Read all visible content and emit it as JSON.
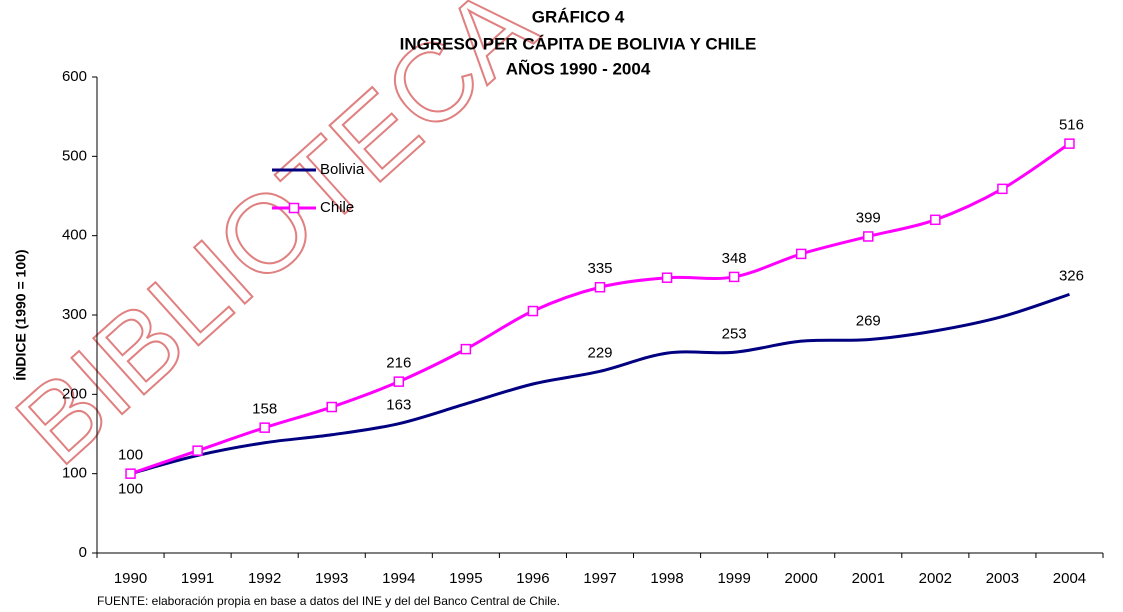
{
  "chart_data": {
    "type": "line",
    "watermark": "BIBLIOTECA",
    "title": [
      "GRÁFICO 4",
      "INGRESO PER CÁPITA DE BOLIVIA Y CHILE",
      "AÑOS 1990 - 2004"
    ],
    "ylabel": "ÍNDICE (1990 = 100)",
    "source": "FUENTE: elaboración propia en base a datos del INE y del del Banco Central de Chile.",
    "categories": [
      "1990",
      "1991",
      "1992",
      "1993",
      "1994",
      "1995",
      "1996",
      "1997",
      "1998",
      "1999",
      "2000",
      "2001",
      "2002",
      "2003",
      "2004"
    ],
    "series": [
      {
        "name": "Bolivia",
        "color": "#000080",
        "marker": false,
        "values": [
          100,
          123,
          139,
          149,
          163,
          188,
          213,
          229,
          252,
          253,
          267,
          269,
          280,
          298,
          326
        ],
        "value_labels": [
          "100",
          null,
          null,
          null,
          "163",
          null,
          null,
          "229",
          null,
          "253",
          null,
          "269",
          null,
          null,
          "326"
        ]
      },
      {
        "name": "Chile",
        "color": "#ff00ff",
        "marker": true,
        "values": [
          100,
          129,
          158,
          184,
          216,
          257,
          305,
          335,
          347,
          348,
          377,
          399,
          420,
          459,
          516
        ],
        "value_labels": [
          "100",
          null,
          "158",
          null,
          "216",
          null,
          null,
          "335",
          null,
          "348",
          null,
          "399",
          null,
          null,
          "516"
        ]
      }
    ],
    "ylim": [
      0,
      600
    ],
    "yticks": [
      0,
      100,
      200,
      300,
      400,
      500,
      600
    ],
    "grid": false,
    "legend": "upper left"
  }
}
